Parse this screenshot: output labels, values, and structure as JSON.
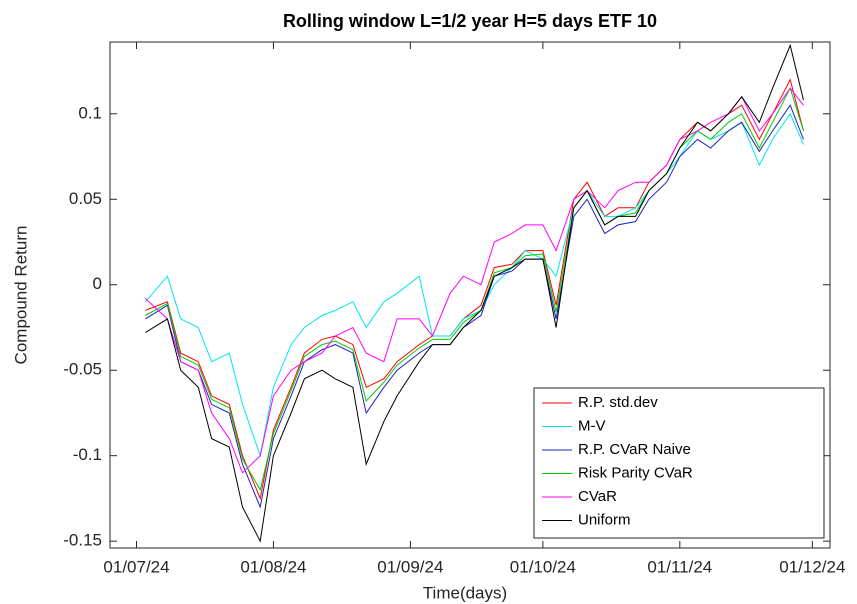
{
  "chart_data": {
    "type": "line",
    "title": "Rolling window L=1/2 year H=5 days ETF 10",
    "xlabel": "Time(days)",
    "ylabel": "Compound Return",
    "x": [
      "2024-07-03",
      "2024-07-08",
      "2024-07-11",
      "2024-07-15",
      "2024-07-18",
      "2024-07-22",
      "2024-07-25",
      "2024-07-29",
      "2024-08-01",
      "2024-08-05",
      "2024-08-08",
      "2024-08-12",
      "2024-08-15",
      "2024-08-19",
      "2024-08-22",
      "2024-08-26",
      "2024-08-29",
      "2024-09-03",
      "2024-09-06",
      "2024-09-10",
      "2024-09-13",
      "2024-09-17",
      "2024-09-20",
      "2024-09-24",
      "2024-09-27",
      "2024-10-01",
      "2024-10-04",
      "2024-10-08",
      "2024-10-11",
      "2024-10-15",
      "2024-10-18",
      "2024-10-22",
      "2024-10-25",
      "2024-10-29",
      "2024-11-01",
      "2024-11-05",
      "2024-11-08",
      "2024-11-12",
      "2024-11-15",
      "2024-11-19",
      "2024-11-22",
      "2024-11-26",
      "2024-11-29"
    ],
    "series": [
      {
        "name": "R.P. std.dev",
        "color": "#ff0000",
        "values": [
          -0.015,
          -0.01,
          -0.04,
          -0.045,
          -0.065,
          -0.07,
          -0.1,
          -0.125,
          -0.085,
          -0.06,
          -0.04,
          -0.032,
          -0.03,
          -0.035,
          -0.06,
          -0.055,
          -0.045,
          -0.035,
          -0.03,
          -0.03,
          -0.02,
          -0.012,
          0.01,
          0.012,
          0.02,
          0.02,
          -0.012,
          0.05,
          0.06,
          0.04,
          0.045,
          0.045,
          0.06,
          0.07,
          0.085,
          0.095,
          0.09,
          0.1,
          0.105,
          0.085,
          0.1,
          0.12,
          0.09
        ]
      },
      {
        "name": "M-V",
        "color": "#00e5ee",
        "values": [
          -0.01,
          0.005,
          -0.02,
          -0.025,
          -0.045,
          -0.04,
          -0.07,
          -0.1,
          -0.06,
          -0.035,
          -0.025,
          -0.018,
          -0.015,
          -0.01,
          -0.025,
          -0.01,
          -0.005,
          0.005,
          -0.03,
          -0.03,
          -0.02,
          -0.015,
          0.0,
          0.01,
          0.02,
          0.015,
          0.005,
          0.045,
          0.055,
          0.04,
          0.04,
          0.045,
          0.055,
          0.065,
          0.075,
          0.09,
          0.085,
          0.09,
          0.095,
          0.07,
          0.085,
          0.1,
          0.082
        ]
      },
      {
        "name": "R.P. CVaR Naive",
        "color": "#2020c0",
        "values": [
          -0.02,
          -0.012,
          -0.045,
          -0.05,
          -0.07,
          -0.075,
          -0.105,
          -0.13,
          -0.09,
          -0.065,
          -0.045,
          -0.038,
          -0.035,
          -0.04,
          -0.075,
          -0.06,
          -0.05,
          -0.04,
          -0.035,
          -0.035,
          -0.025,
          -0.018,
          0.005,
          0.008,
          0.015,
          0.015,
          -0.02,
          0.04,
          0.05,
          0.03,
          0.035,
          0.037,
          0.05,
          0.06,
          0.075,
          0.085,
          0.08,
          0.09,
          0.095,
          0.078,
          0.09,
          0.105,
          0.085
        ]
      },
      {
        "name": "Risk Parity CVaR",
        "color": "#00d000",
        "values": [
          -0.018,
          -0.011,
          -0.042,
          -0.047,
          -0.067,
          -0.072,
          -0.102,
          -0.12,
          -0.087,
          -0.062,
          -0.042,
          -0.035,
          -0.033,
          -0.038,
          -0.068,
          -0.057,
          -0.047,
          -0.037,
          -0.032,
          -0.032,
          -0.022,
          -0.015,
          0.007,
          0.01,
          0.017,
          0.018,
          -0.016,
          0.045,
          0.055,
          0.035,
          0.04,
          0.042,
          0.055,
          0.065,
          0.08,
          0.09,
          0.085,
          0.095,
          0.1,
          0.08,
          0.095,
          0.115,
          0.09
        ]
      },
      {
        "name": "CVaR",
        "color": "#ff00ff",
        "values": [
          -0.008,
          -0.02,
          -0.045,
          -0.05,
          -0.075,
          -0.09,
          -0.11,
          -0.1,
          -0.065,
          -0.05,
          -0.045,
          -0.04,
          -0.03,
          -0.025,
          -0.04,
          -0.045,
          -0.02,
          -0.02,
          -0.03,
          -0.005,
          0.005,
          0.0,
          0.025,
          0.03,
          0.035,
          0.035,
          0.02,
          0.05,
          0.055,
          0.045,
          0.055,
          0.06,
          0.06,
          0.07,
          0.085,
          0.09,
          0.095,
          0.1,
          0.11,
          0.09,
          0.1,
          0.115,
          0.105
        ]
      },
      {
        "name": "Uniform",
        "color": "#000000",
        "values": [
          -0.028,
          -0.02,
          -0.05,
          -0.06,
          -0.09,
          -0.095,
          -0.13,
          -0.15,
          -0.1,
          -0.075,
          -0.055,
          -0.05,
          -0.055,
          -0.06,
          -0.105,
          -0.08,
          -0.065,
          -0.045,
          -0.035,
          -0.035,
          -0.025,
          -0.015,
          0.005,
          0.01,
          0.015,
          0.015,
          -0.025,
          0.045,
          0.055,
          0.035,
          0.04,
          0.04,
          0.055,
          0.065,
          0.08,
          0.095,
          0.09,
          0.1,
          0.11,
          0.095,
          0.115,
          0.14,
          0.108
        ]
      }
    ],
    "xlim": [
      "2024-06-25",
      "2024-12-05"
    ],
    "xticks": [
      {
        "value": "2024-07-01",
        "label": "01/07/24"
      },
      {
        "value": "2024-08-01",
        "label": "01/08/24"
      },
      {
        "value": "2024-09-01",
        "label": "01/09/24"
      },
      {
        "value": "2024-10-01",
        "label": "01/10/24"
      },
      {
        "value": "2024-11-01",
        "label": "01/11/24"
      },
      {
        "value": "2024-12-01",
        "label": "01/12/24"
      }
    ],
    "ylim": [
      -0.154,
      0.142
    ],
    "yticks": [
      -0.15,
      -0.1,
      -0.05,
      0,
      0.05,
      0.1
    ],
    "grid": false,
    "legend": "lower right"
  }
}
